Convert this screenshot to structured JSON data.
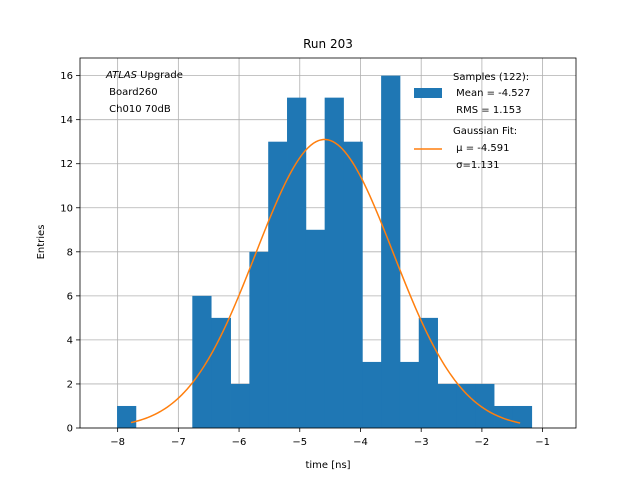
{
  "chart_data": {
    "type": "bar",
    "title": "Run 203",
    "xlabel": "time [ns]",
    "ylabel": "Entries",
    "xlim": [
      -8.62,
      -0.45
    ],
    "ylim": [
      0,
      16.8
    ],
    "xticks": [
      -8,
      -7,
      -6,
      -5,
      -4,
      -3,
      -2,
      -1
    ],
    "xtick_labels": [
      "−8",
      "−7",
      "−6",
      "−5",
      "−4",
      "−3",
      "−2",
      "−1"
    ],
    "yticks": [
      0,
      2,
      4,
      6,
      8,
      10,
      12,
      14,
      16
    ],
    "ytick_labels": [
      "0",
      "2",
      "4",
      "6",
      "8",
      "10",
      "12",
      "14",
      "16"
    ],
    "grid": true,
    "annotation": {
      "lines": [
        {
          "italic": "ATLAS",
          "text": " Upgrade"
        },
        {
          "italic": "",
          "text": " Board260"
        },
        {
          "italic": "",
          "text": " Ch010 70dB"
        }
      ]
    },
    "legend": {
      "placement": "top-right",
      "entries": [
        {
          "kind": "patch",
          "lines": [
            "Samples (122):",
            " Mean = -4.527",
            " RMS = 1.153"
          ]
        },
        {
          "kind": "line",
          "lines": [
            "Gaussian Fit:",
            " μ = -4.591",
            " σ=1.131"
          ]
        }
      ]
    },
    "series": [
      {
        "kind": "histogram",
        "color": "#1f77b4",
        "bins": [
          {
            "x0": -8.01,
            "x1": -7.7,
            "count": 1
          },
          {
            "x0": -7.7,
            "x1": -7.39,
            "count": 0
          },
          {
            "x0": -7.39,
            "x1": -7.08,
            "count": 0
          },
          {
            "x0": -7.08,
            "x1": -6.77,
            "count": 0
          },
          {
            "x0": -6.77,
            "x1": -6.46,
            "count": 6
          },
          {
            "x0": -6.46,
            "x1": -6.14,
            "count": 5
          },
          {
            "x0": -6.14,
            "x1": -5.83,
            "count": 2
          },
          {
            "x0": -5.83,
            "x1": -5.52,
            "count": 8
          },
          {
            "x0": -5.52,
            "x1": -5.21,
            "count": 13
          },
          {
            "x0": -5.21,
            "x1": -4.9,
            "count": 15
          },
          {
            "x0": -4.9,
            "x1": -4.59,
            "count": 9
          },
          {
            "x0": -4.59,
            "x1": -4.28,
            "count": 15
          },
          {
            "x0": -4.28,
            "x1": -3.97,
            "count": 13
          },
          {
            "x0": -3.97,
            "x1": -3.66,
            "count": 3
          },
          {
            "x0": -3.66,
            "x1": -3.35,
            "count": 16
          },
          {
            "x0": -3.35,
            "x1": -3.04,
            "count": 3
          },
          {
            "x0": -3.04,
            "x1": -2.73,
            "count": 5
          },
          {
            "x0": -2.73,
            "x1": -2.42,
            "count": 2
          },
          {
            "x0": -2.42,
            "x1": -2.11,
            "count": 2
          },
          {
            "x0": -2.11,
            "x1": -1.8,
            "count": 2
          },
          {
            "x0": -1.8,
            "x1": -1.49,
            "count": 1
          },
          {
            "x0": -1.49,
            "x1": -1.18,
            "count": 1
          }
        ]
      },
      {
        "kind": "line",
        "color": "#ff7f0e",
        "fit": {
          "mu": -4.591,
          "sigma": 1.131,
          "amplitude": 13.1,
          "x_range": [
            -7.78,
            -1.37
          ]
        }
      }
    ]
  }
}
